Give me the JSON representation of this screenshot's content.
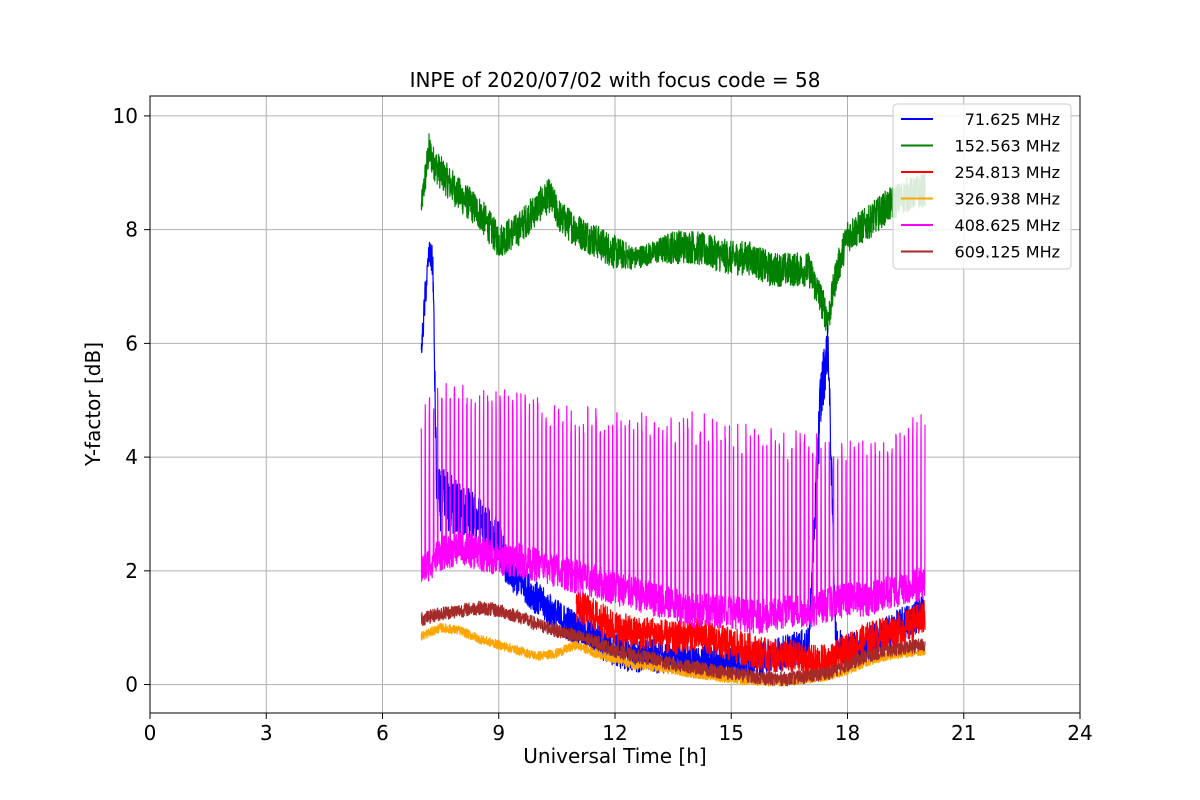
{
  "chart_data": {
    "type": "line",
    "title": "INPE of 2020/07/02 with focus code = 58",
    "xlabel": "Universal Time [h]",
    "ylabel": "Y-factor [dB]",
    "xlim": [
      0,
      24
    ],
    "ylim": [
      -0.5,
      10.35
    ],
    "xticks": [
      0,
      3,
      6,
      9,
      12,
      15,
      18,
      21,
      24
    ],
    "yticks": [
      0,
      2,
      4,
      6,
      8,
      10
    ],
    "grid": true,
    "legend_position": "top-right",
    "series": [
      {
        "name": "71.625 MHz",
        "color": "#0000ff",
        "x": [
          7.0,
          7.1,
          7.2,
          7.3,
          7.4,
          7.6,
          8.0,
          8.5,
          9.0,
          9.3,
          9.6,
          10.0,
          10.5,
          11.0,
          11.5,
          12.0,
          12.5,
          13.0,
          13.5,
          14.0,
          14.5,
          15.0,
          15.5,
          16.0,
          16.5,
          17.0,
          17.3,
          17.5,
          17.7,
          17.9,
          18.5,
          19.0,
          19.5,
          20.0
        ],
        "y": [
          5.8,
          6.8,
          7.6,
          7.4,
          3.3,
          3.2,
          3.1,
          2.9,
          2.5,
          1.9,
          1.8,
          1.5,
          1.2,
          1.0,
          0.8,
          0.6,
          0.5,
          0.5,
          0.5,
          0.4,
          0.4,
          0.4,
          0.4,
          0.5,
          0.6,
          0.7,
          5.0,
          6.0,
          0.8,
          0.6,
          0.7,
          0.9,
          1.1,
          1.3
        ],
        "band": [
          0.2,
          0.3,
          0.2,
          0.3,
          0.5,
          0.6,
          0.5,
          0.4,
          0.4,
          0.3,
          0.3,
          0.3,
          0.3,
          0.3,
          0.3,
          0.3,
          0.3,
          0.3,
          0.3,
          0.3,
          0.3,
          0.3,
          0.3,
          0.3,
          0.3,
          0.3,
          0.6,
          0.4,
          0.3,
          0.3,
          0.3,
          0.3,
          0.3,
          0.3
        ]
      },
      {
        "name": "152.563 MHz",
        "color": "#008000",
        "x": [
          7.0,
          7.1,
          7.2,
          7.3,
          7.5,
          8.0,
          8.5,
          8.8,
          9.0,
          9.5,
          10.0,
          10.3,
          10.6,
          11.0,
          11.5,
          12.0,
          12.5,
          13.0,
          13.5,
          14.0,
          14.5,
          15.0,
          15.5,
          16.0,
          16.5,
          17.0,
          17.3,
          17.5,
          17.7,
          18.0,
          18.5,
          19.0,
          19.5,
          20.0
        ],
        "y": [
          8.4,
          8.9,
          9.4,
          9.2,
          9.0,
          8.6,
          8.3,
          8.0,
          7.8,
          8.0,
          8.4,
          8.6,
          8.2,
          8.0,
          7.8,
          7.6,
          7.5,
          7.6,
          7.7,
          7.7,
          7.6,
          7.5,
          7.5,
          7.3,
          7.3,
          7.3,
          6.8,
          6.4,
          7.2,
          7.9,
          8.1,
          8.4,
          8.6,
          8.7
        ],
        "band": [
          0.2,
          0.3,
          0.3,
          0.3,
          0.3,
          0.3,
          0.3,
          0.3,
          0.3,
          0.3,
          0.3,
          0.3,
          0.3,
          0.3,
          0.3,
          0.3,
          0.2,
          0.2,
          0.3,
          0.3,
          0.3,
          0.3,
          0.3,
          0.3,
          0.3,
          0.3,
          0.3,
          0.3,
          0.3,
          0.3,
          0.3,
          0.3,
          0.3,
          0.3
        ]
      },
      {
        "name": "254.813 MHz",
        "color": "#ff0000",
        "x": [
          11.0,
          11.5,
          12.0,
          12.5,
          13.0,
          13.5,
          14.0,
          14.5,
          15.0,
          15.5,
          16.0,
          16.5,
          17.0,
          17.5,
          18.0,
          18.5,
          19.0,
          19.5,
          20.0
        ],
        "y": [
          1.4,
          1.2,
          1.0,
          0.9,
          0.9,
          0.8,
          0.9,
          0.8,
          0.7,
          0.6,
          0.5,
          0.5,
          0.4,
          0.4,
          0.6,
          0.8,
          0.9,
          1.0,
          1.2
        ],
        "band": [
          0.3,
          0.3,
          0.3,
          0.3,
          0.3,
          0.3,
          0.3,
          0.3,
          0.3,
          0.3,
          0.3,
          0.3,
          0.3,
          0.3,
          0.3,
          0.3,
          0.3,
          0.3,
          0.3
        ]
      },
      {
        "name": "326.938 MHz",
        "color": "#ffa500",
        "x": [
          7.0,
          7.5,
          8.0,
          8.5,
          9.0,
          9.5,
          10.0,
          10.5,
          11.0,
          11.5,
          12.0,
          12.5,
          13.0,
          13.5,
          14.0,
          14.5,
          15.0,
          15.5,
          16.0,
          16.5,
          17.0,
          17.5,
          18.0,
          18.5,
          19.0,
          19.5,
          20.0
        ],
        "y": [
          0.85,
          1.0,
          0.95,
          0.8,
          0.7,
          0.6,
          0.5,
          0.55,
          0.7,
          0.55,
          0.45,
          0.35,
          0.3,
          0.25,
          0.2,
          0.15,
          0.1,
          0.07,
          0.05,
          0.05,
          0.1,
          0.15,
          0.25,
          0.4,
          0.5,
          0.55,
          0.6
        ],
        "band": [
          0.08,
          0.08,
          0.08,
          0.08,
          0.08,
          0.08,
          0.08,
          0.08,
          0.08,
          0.08,
          0.08,
          0.08,
          0.08,
          0.08,
          0.08,
          0.08,
          0.08,
          0.08,
          0.08,
          0.08,
          0.08,
          0.08,
          0.08,
          0.08,
          0.08,
          0.08,
          0.08
        ]
      },
      {
        "name": "408.625 MHz",
        "color": "#ff00ff",
        "x": [
          7.0,
          7.5,
          8.0,
          8.5,
          9.0,
          9.5,
          10.0,
          10.5,
          11.0,
          11.5,
          12.0,
          12.5,
          13.0,
          13.5,
          14.0,
          14.5,
          15.0,
          15.5,
          16.0,
          16.5,
          17.0,
          17.5,
          18.0,
          18.5,
          19.0,
          19.5,
          20.0
        ],
        "y": [
          2.0,
          2.3,
          2.4,
          2.3,
          2.2,
          2.2,
          2.1,
          2.0,
          1.9,
          1.8,
          1.7,
          1.6,
          1.5,
          1.4,
          1.3,
          1.3,
          1.3,
          1.2,
          1.2,
          1.3,
          1.3,
          1.4,
          1.5,
          1.5,
          1.6,
          1.7,
          1.8
        ],
        "band": [
          0.3,
          0.3,
          0.3,
          0.3,
          0.3,
          0.3,
          0.3,
          0.3,
          0.3,
          0.3,
          0.3,
          0.3,
          0.3,
          0.3,
          0.3,
          0.3,
          0.3,
          0.3,
          0.3,
          0.3,
          0.3,
          0.3,
          0.3,
          0.3,
          0.3,
          0.3,
          0.3
        ],
        "spike_top": [
          5.0,
          5.3,
          5.3,
          5.2,
          5.2,
          5.2,
          5.1,
          5.0,
          4.9,
          4.9,
          4.9,
          4.8,
          4.8,
          4.8,
          4.9,
          4.7,
          4.6,
          4.6,
          4.6,
          4.5,
          4.5,
          4.4,
          4.3,
          4.3,
          4.4,
          4.6,
          4.9
        ]
      },
      {
        "name": "609.125 MHz",
        "color": "#a52a2a",
        "x": [
          7.0,
          7.5,
          8.0,
          8.5,
          9.0,
          9.5,
          10.0,
          10.5,
          11.0,
          11.5,
          12.0,
          12.5,
          13.0,
          13.5,
          14.0,
          14.5,
          15.0,
          15.5,
          16.0,
          16.5,
          17.0,
          17.5,
          18.0,
          18.5,
          19.0,
          19.5,
          20.0
        ],
        "y": [
          1.15,
          1.25,
          1.3,
          1.35,
          1.3,
          1.2,
          1.05,
          0.95,
          0.85,
          0.75,
          0.6,
          0.5,
          0.45,
          0.35,
          0.3,
          0.25,
          0.2,
          0.15,
          0.1,
          0.1,
          0.15,
          0.2,
          0.35,
          0.5,
          0.6,
          0.65,
          0.7
        ],
        "band": [
          0.12,
          0.12,
          0.12,
          0.12,
          0.12,
          0.12,
          0.12,
          0.12,
          0.12,
          0.12,
          0.12,
          0.12,
          0.12,
          0.12,
          0.12,
          0.12,
          0.12,
          0.12,
          0.12,
          0.12,
          0.12,
          0.12,
          0.12,
          0.12,
          0.12,
          0.12,
          0.12
        ]
      }
    ]
  }
}
